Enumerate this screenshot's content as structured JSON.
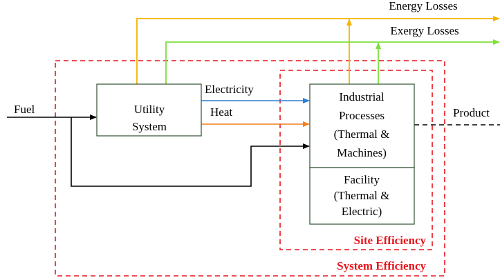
{
  "losses": {
    "energy": "Energy Losses",
    "exergy": "Exergy Losses"
  },
  "nodes": [
    {
      "label": [
        "Utility",
        "System"
      ]
    },
    {
      "label": [
        "Industrial",
        "Processes",
        "(Thermal &",
        "Machines)"
      ]
    },
    {
      "label": [
        "Facility",
        "(Thermal &",
        "Electric)"
      ]
    }
  ],
  "flows": {
    "fuel": "Fuel",
    "electricity": "Electricity",
    "heat": "Heat",
    "product": "Product"
  },
  "boundaries": {
    "site": "Site Efficiency",
    "system": "System Efficiency"
  }
}
